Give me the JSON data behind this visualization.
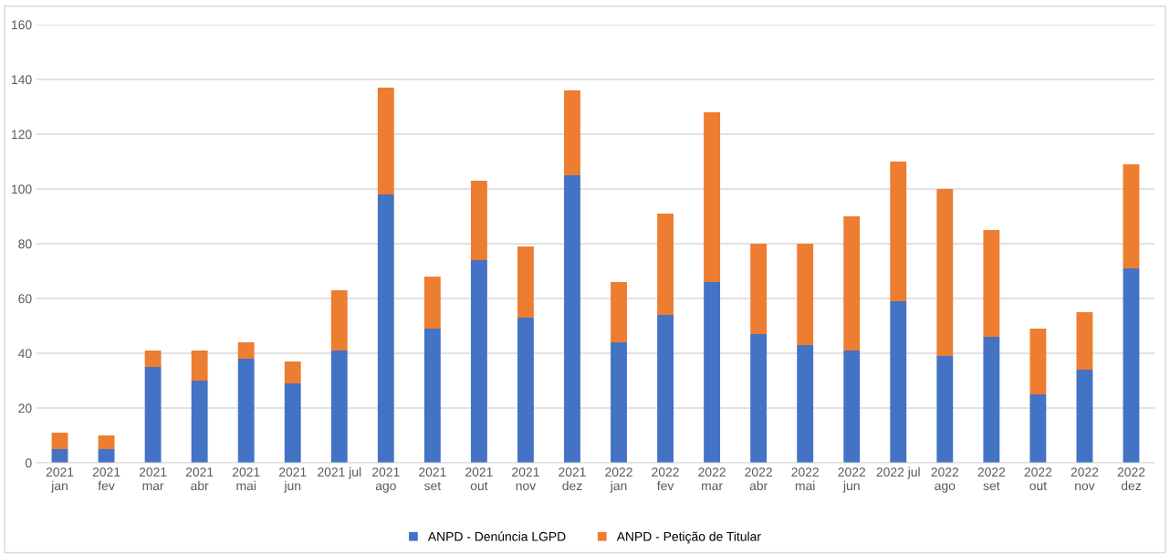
{
  "chart_data": {
    "type": "bar",
    "stacked": true,
    "categories": [
      "2021\njan",
      "2021\nfev",
      "2021\nmar",
      "2021\nabr",
      "2021\nmai",
      "2021\njun",
      "2021 jul",
      "2021\nago",
      "2021\nset",
      "2021\nout",
      "2021\nnov",
      "2021\ndez",
      "2022\njan",
      "2022\nfev",
      "2022\nmar",
      "2022\nabr",
      "2022\nmai",
      "2022\njun",
      "2022 jul",
      "2022\nago",
      "2022\nset",
      "2022\nout",
      "2022\nnov",
      "2022\ndez"
    ],
    "series": [
      {
        "name": "ANPD - Denúncia LGPD",
        "color": "#4472c4",
        "values": [
          5,
          5,
          35,
          30,
          38,
          29,
          41,
          98,
          49,
          74,
          53,
          105,
          44,
          54,
          66,
          47,
          43,
          41,
          59,
          39,
          46,
          25,
          34,
          71
        ]
      },
      {
        "name": "ANPD - Petição de Titular",
        "color": "#ed7d31",
        "values": [
          6,
          5,
          6,
          11,
          6,
          8,
          22,
          39,
          19,
          29,
          26,
          31,
          22,
          37,
          62,
          33,
          37,
          49,
          51,
          61,
          39,
          24,
          21,
          38
        ]
      }
    ],
    "ylim": [
      0,
      160
    ],
    "yticks": [
      0,
      20,
      40,
      60,
      80,
      100,
      120,
      140,
      160
    ],
    "grid": "y",
    "legend": "bottom"
  }
}
